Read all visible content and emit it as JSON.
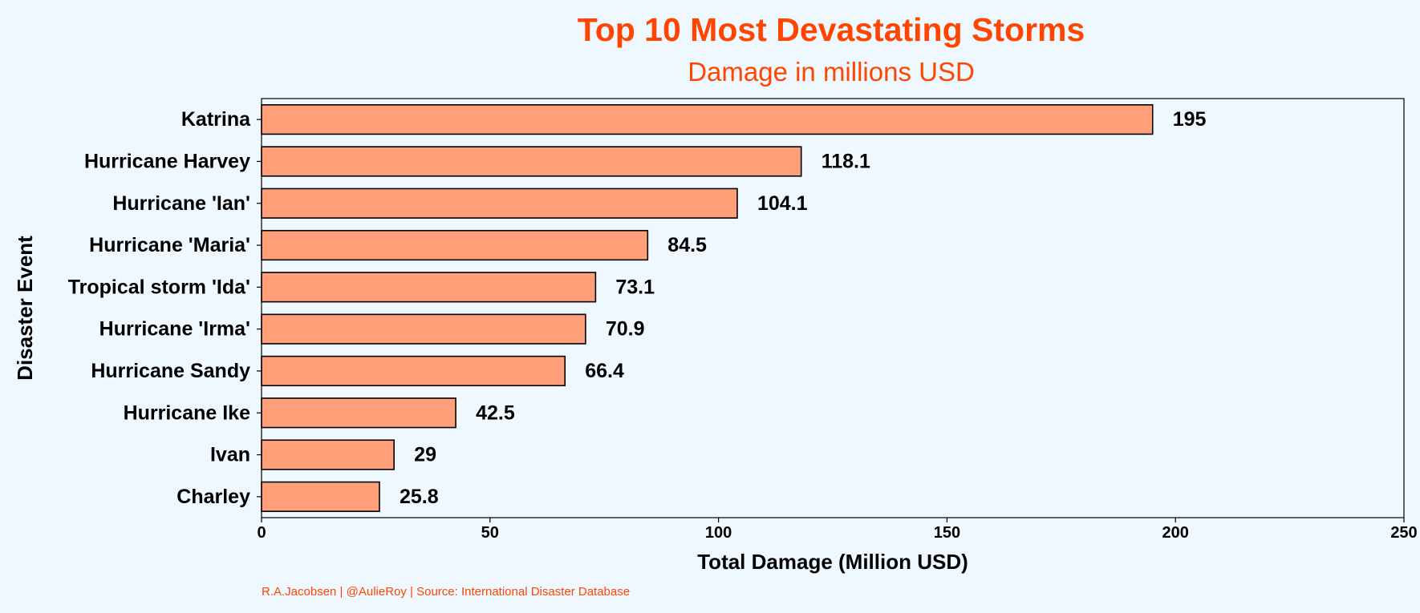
{
  "chart_data": {
    "type": "bar",
    "orientation": "horizontal",
    "title": "Top 10 Most Devastating Storms",
    "subtitle": "Damage in millions USD",
    "xlabel": "Total Damage (Million USD)",
    "ylabel": "Disaster Event",
    "caption": "R.A.Jacobsen | @AulieRoy | Source: International Disaster Database",
    "categories": [
      "Katrina",
      "Hurricane Harvey",
      "Hurricane 'Ian'",
      "Hurricane 'Maria'",
      "Tropical storm 'Ida'",
      "Hurricane 'Irma'",
      "Hurricane Sandy",
      "Hurricane Ike",
      "Ivan",
      "Charley"
    ],
    "values": [
      195,
      118.1,
      104.1,
      84.5,
      73.1,
      70.9,
      66.4,
      42.5,
      29,
      25.8
    ],
    "data_labels": [
      "195",
      "118.1",
      "104.1",
      "84.5",
      "73.1",
      "70.9",
      "66.4",
      "42.5",
      "29",
      "25.8"
    ],
    "xlim": [
      0,
      250
    ],
    "xticks": [
      0,
      50,
      100,
      150,
      200,
      250
    ],
    "xtick_labels": [
      "0",
      "50",
      "100",
      "150",
      "200",
      "250"
    ],
    "grid": false,
    "legend": "none",
    "colors": {
      "background": "#f0f8ff",
      "bar_fill": "#ffa07a",
      "bar_stroke": "#000000",
      "title": "#ff4500",
      "subtitle": "#ff4500",
      "caption": "#ff4500",
      "text": "#000000"
    }
  }
}
